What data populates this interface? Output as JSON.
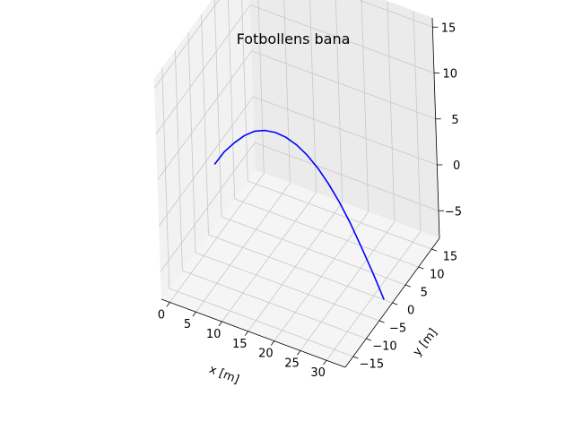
{
  "chart_data": {
    "type": "line",
    "title": "Fotbollens bana",
    "xlabel": "x [m]",
    "ylabel": "y [m]",
    "zlabel": "",
    "xlim": [
      -1.6,
      33.6
    ],
    "ylim": [
      -18,
      18
    ],
    "zlim": [
      -8,
      16
    ],
    "x_ticks": [
      0,
      5,
      10,
      15,
      20,
      25,
      30
    ],
    "y_ticks": [
      -15,
      -10,
      -5,
      0,
      5,
      10,
      15
    ],
    "z_ticks": [
      -5,
      0,
      5,
      10,
      15
    ],
    "x_tick_labels": [
      "0",
      "5",
      "10",
      "15",
      "20",
      "25",
      "30"
    ],
    "y_tick_labels": [
      "−15",
      "−10",
      "−5",
      "0",
      "5",
      "10",
      "15"
    ],
    "z_tick_labels": [
      "−5",
      "0",
      "5",
      "10",
      "15"
    ],
    "grid": true,
    "series": [
      {
        "color": "#0000ff",
        "x": [
          0,
          2,
          4,
          6,
          8,
          10,
          12,
          14,
          16,
          18,
          20,
          22,
          24,
          26,
          28,
          30,
          32
        ],
        "y": [
          0,
          0,
          0,
          0,
          0,
          0,
          0,
          0,
          0,
          0,
          0,
          0,
          0,
          0,
          0,
          0,
          0
        ],
        "z": [
          0,
          1.8,
          3.2,
          4.4,
          5.3,
          5.8,
          6.0,
          5.9,
          5.5,
          4.8,
          3.8,
          2.5,
          0.9,
          -1.0,
          -3.2,
          -5.5,
          -8.0
        ]
      }
    ]
  }
}
